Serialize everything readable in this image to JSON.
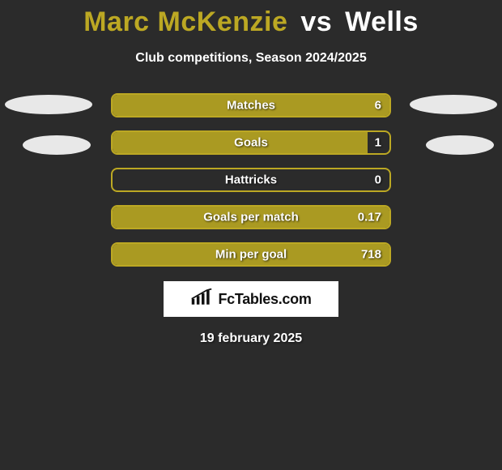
{
  "title": {
    "player1": "Marc McKenzie",
    "vs": "vs",
    "player2": "Wells",
    "player1_color": "#bca823",
    "player2_color": "#ffffff"
  },
  "subtitle": "Club competitions, Season 2024/2025",
  "colors": {
    "background": "#2b2b2b",
    "bar_border": "#bca823",
    "bar_fill": "#aa9a22",
    "oval": "#e8e8e8",
    "text": "#ffffff"
  },
  "stats": [
    {
      "label": "Matches",
      "value": "6",
      "fill_pct": 100
    },
    {
      "label": "Goals",
      "value": "1",
      "fill_pct": 92
    },
    {
      "label": "Hattricks",
      "value": "0",
      "fill_pct": 0
    },
    {
      "label": "Goals per match",
      "value": "0.17",
      "fill_pct": 100
    },
    {
      "label": "Min per goal",
      "value": "718",
      "fill_pct": 100
    }
  ],
  "brand": "FcTables.com",
  "date": "19 february 2025"
}
